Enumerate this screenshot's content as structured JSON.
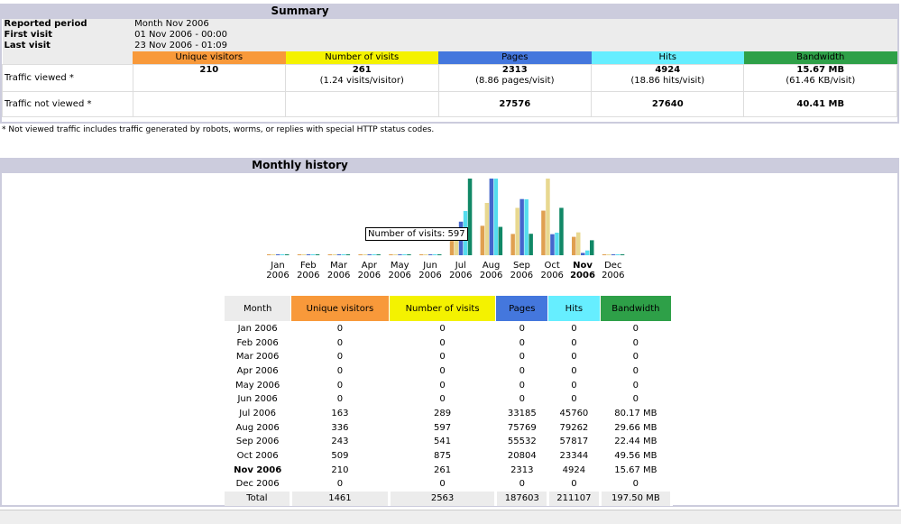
{
  "summary": {
    "title": "Summary",
    "reported_period_label": "Reported period",
    "reported_period": "Month Nov 2006",
    "first_visit_label": "First visit",
    "first_visit": "01 Nov 2006 - 00:00",
    "last_visit_label": "Last visit",
    "last_visit": "23 Nov 2006 - 01:09",
    "headers": [
      "Unique visitors",
      "Number of visits",
      "Pages",
      "Hits",
      "Bandwidth"
    ],
    "viewed_label": "Traffic viewed *",
    "viewed": [
      {
        "v": "210",
        "s": ""
      },
      {
        "v": "261",
        "s": "(1.24 visits/visitor)"
      },
      {
        "v": "2313",
        "s": "(8.86 pages/visit)"
      },
      {
        "v": "4924",
        "s": "(18.86 hits/visit)"
      },
      {
        "v": "15.67 MB",
        "s": "(61.46 KB/visit)"
      }
    ],
    "not_viewed_label": "Traffic not viewed *",
    "not_viewed": [
      "",
      "",
      "27576",
      "27640",
      "40.41 MB"
    ],
    "note": "* Not viewed traffic includes traffic generated by robots, worms, or replies with special HTTP status codes."
  },
  "colors": {
    "visitors": "#f8993a",
    "visits": "#f4f200",
    "pages": "#4477dd",
    "hits": "#66eeff",
    "bandwidth": "#2ea048"
  },
  "history": {
    "title": "Monthly history",
    "tooltip": "Number of visits: 597",
    "headers": [
      "Month",
      "Unique visitors",
      "Number of visits",
      "Pages",
      "Hits",
      "Bandwidth"
    ],
    "rows": [
      [
        "Jan 2006",
        "0",
        "0",
        "0",
        "0",
        "0"
      ],
      [
        "Feb 2006",
        "0",
        "0",
        "0",
        "0",
        "0"
      ],
      [
        "Mar 2006",
        "0",
        "0",
        "0",
        "0",
        "0"
      ],
      [
        "Apr 2006",
        "0",
        "0",
        "0",
        "0",
        "0"
      ],
      [
        "May 2006",
        "0",
        "0",
        "0",
        "0",
        "0"
      ],
      [
        "Jun 2006",
        "0",
        "0",
        "0",
        "0",
        "0"
      ],
      [
        "Jul 2006",
        "163",
        "289",
        "33185",
        "45760",
        "80.17 MB"
      ],
      [
        "Aug 2006",
        "336",
        "597",
        "75769",
        "79262",
        "29.66 MB"
      ],
      [
        "Sep 2006",
        "243",
        "541",
        "55532",
        "57817",
        "22.44 MB"
      ],
      [
        "Oct 2006",
        "509",
        "875",
        "20804",
        "23344",
        "49.56 MB"
      ],
      [
        "Nov 2006",
        "210",
        "261",
        "2313",
        "4924",
        "15.67 MB"
      ],
      [
        "Dec 2006",
        "0",
        "0",
        "0",
        "0",
        "0"
      ]
    ],
    "total": [
      "Total",
      "1461",
      "2563",
      "187603",
      "211107",
      "197.50 MB"
    ]
  },
  "chart_data": {
    "type": "bar",
    "categories": [
      [
        "Jan",
        "2006"
      ],
      [
        "Feb",
        "2006"
      ],
      [
        "Mar",
        "2006"
      ],
      [
        "Apr",
        "2006"
      ],
      [
        "May",
        "2006"
      ],
      [
        "Jun",
        "2006"
      ],
      [
        "Jul",
        "2006"
      ],
      [
        "Aug",
        "2006"
      ],
      [
        "Sep",
        "2006"
      ],
      [
        "Oct",
        "2006"
      ],
      [
        "Nov",
        "2006"
      ],
      [
        "Dec",
        "2006"
      ]
    ],
    "series": [
      {
        "name": "Unique visitors",
        "values": [
          0,
          0,
          0,
          0,
          0,
          0,
          163,
          336,
          243,
          509,
          210,
          0
        ]
      },
      {
        "name": "Number of visits",
        "values": [
          0,
          0,
          0,
          0,
          0,
          0,
          289,
          597,
          541,
          875,
          261,
          0
        ]
      },
      {
        "name": "Pages",
        "values": [
          0,
          0,
          0,
          0,
          0,
          0,
          33185,
          75769,
          55532,
          20804,
          2313,
          0
        ]
      },
      {
        "name": "Hits",
        "values": [
          0,
          0,
          0,
          0,
          0,
          0,
          45760,
          79262,
          57817,
          23344,
          4924,
          0
        ]
      },
      {
        "name": "Bandwidth (MB)",
        "values": [
          0,
          0,
          0,
          0,
          0,
          0,
          80.17,
          29.66,
          22.44,
          49.56,
          15.67,
          0
        ]
      }
    ]
  }
}
